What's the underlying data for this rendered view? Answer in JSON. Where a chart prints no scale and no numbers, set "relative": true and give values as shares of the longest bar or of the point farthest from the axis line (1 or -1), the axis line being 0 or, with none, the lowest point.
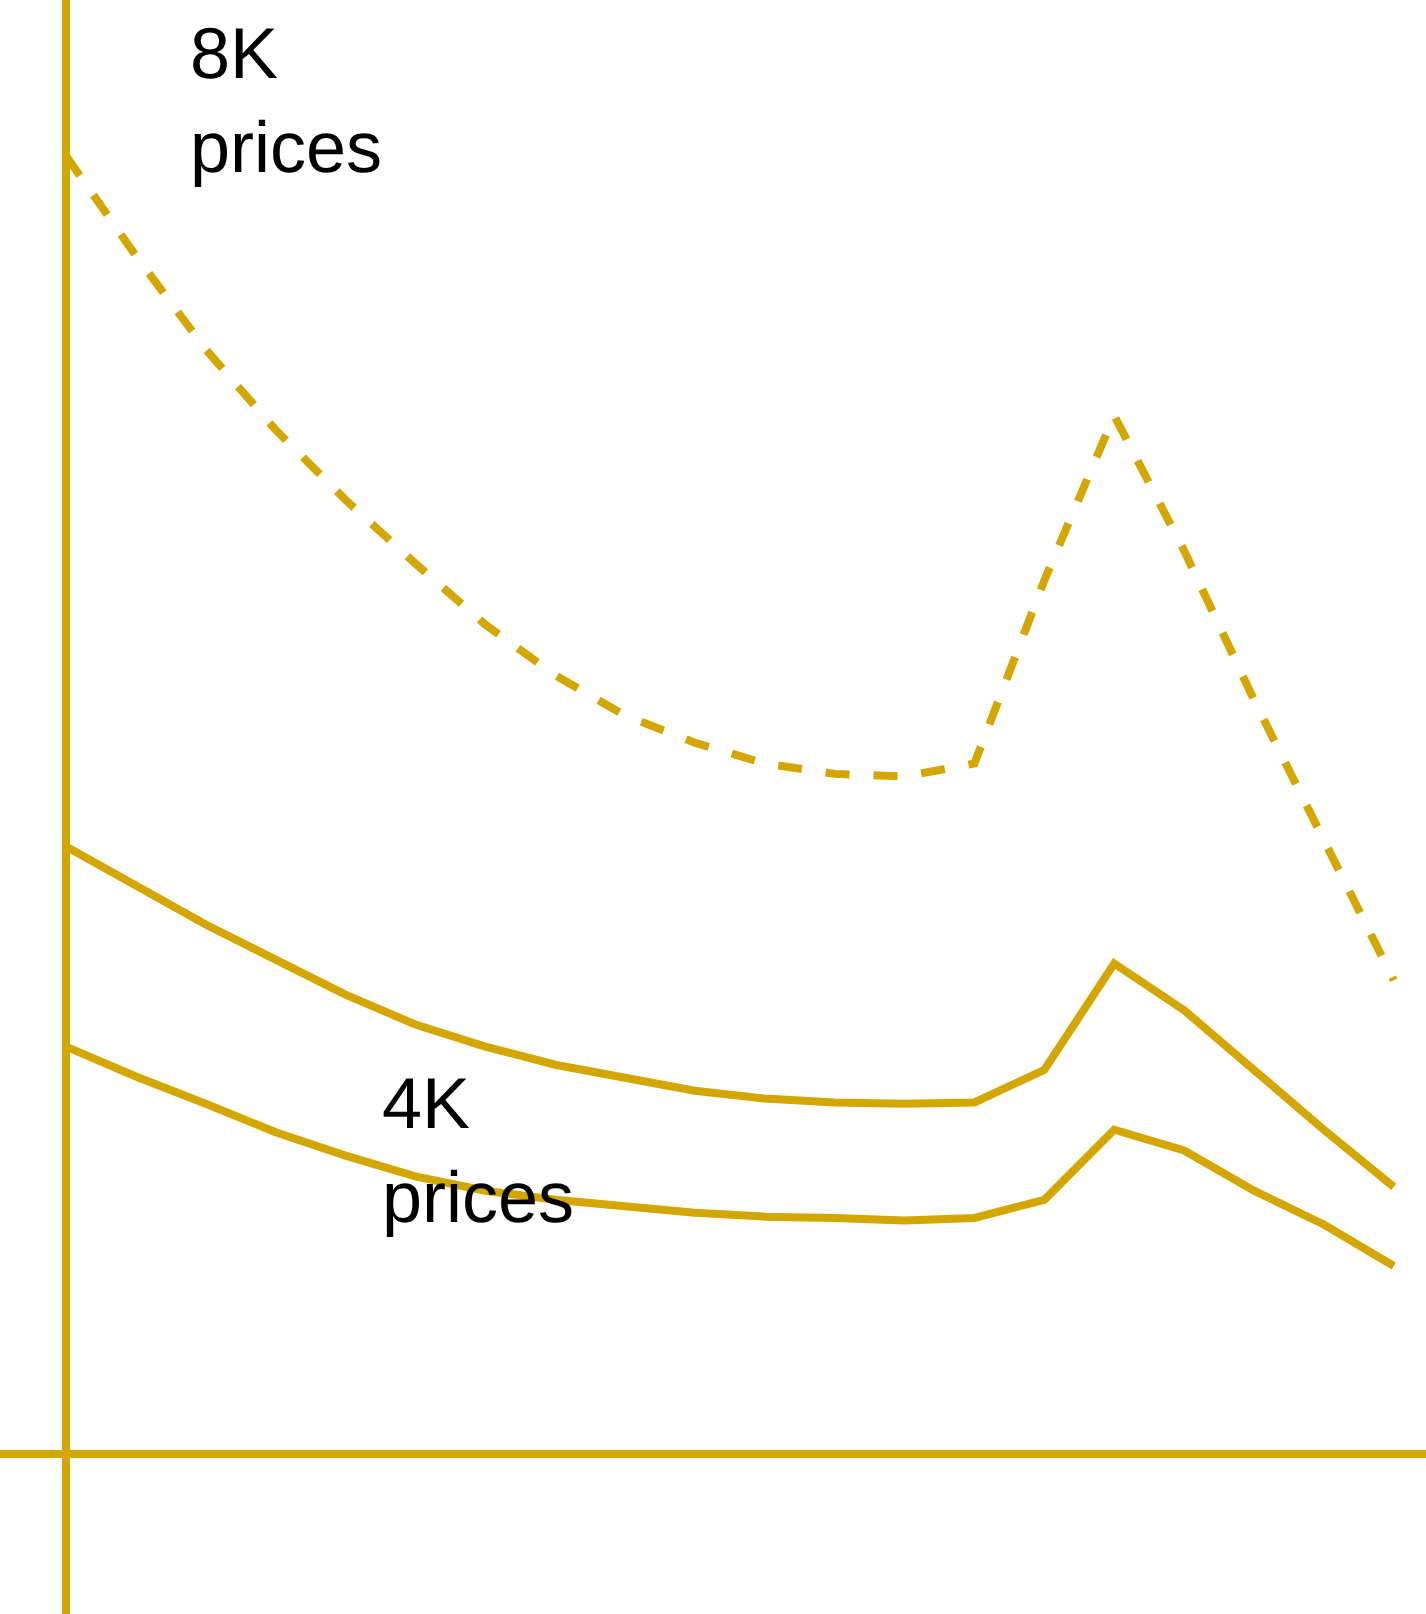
{
  "chart_data": {
    "type": "line",
    "relative": true,
    "marker": "none",
    "annotations": [
      "8K\nprices",
      "4K\nprices"
    ],
    "categories": [
      null,
      null,
      null,
      null,
      null,
      null,
      null,
      null,
      null,
      null,
      null,
      null,
      null,
      null,
      null,
      null,
      null,
      null,
      null,
      null
    ],
    "series": [
      {
        "color": "#d4a600",
        "line_style": "dashed",
        "values": [
          1.0,
          0.923,
          0.851,
          0.789,
          0.735,
          0.686,
          0.639,
          0.6,
          0.569,
          0.548,
          0.532,
          0.524,
          0.522,
          0.532,
          0.673,
          0.8,
          0.696,
          0.581,
          0.473,
          0.365
        ]
      },
      {
        "color": "#d4a600",
        "line_style": "solid",
        "values": [
          0.468,
          0.438,
          0.408,
          0.381,
          0.354,
          0.331,
          0.314,
          0.3,
          0.29,
          0.28,
          0.274,
          0.271,
          0.27,
          0.271,
          0.296,
          0.378,
          0.342,
          0.296,
          0.25,
          0.206
        ]
      },
      {
        "color": "#d4a600",
        "line_style": "solid",
        "values": [
          0.314,
          0.291,
          0.27,
          0.248,
          0.23,
          0.214,
          0.203,
          0.196,
          0.191,
          0.186,
          0.183,
          0.182,
          0.18,
          0.182,
          0.196,
          0.25,
          0.234,
          0.203,
          0.177,
          0.145
        ]
      }
    ]
  }
}
